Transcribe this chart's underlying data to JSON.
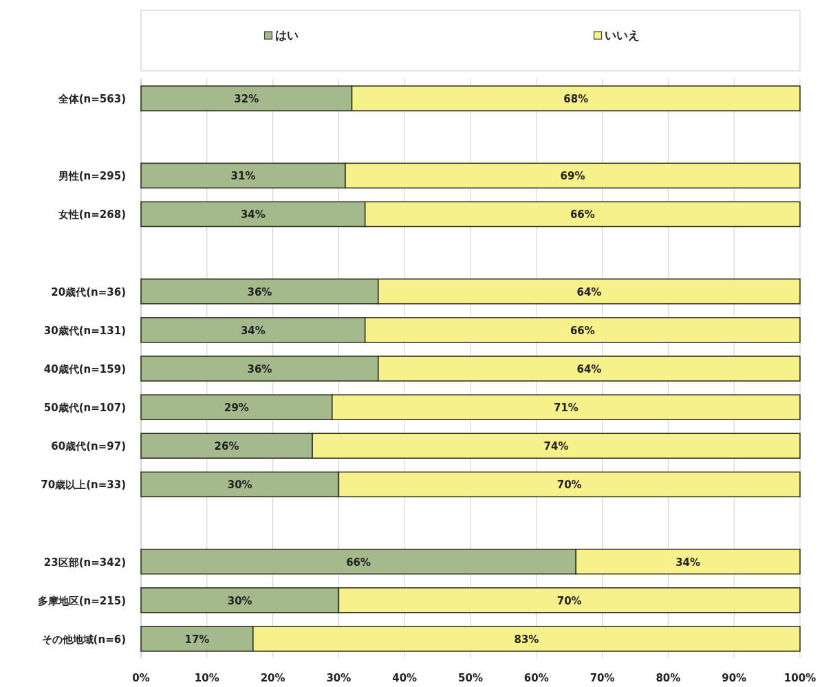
{
  "chart_data": {
    "type": "bar",
    "orientation": "horizontal",
    "stacked": true,
    "categories": [
      "全体(n=563)",
      null,
      "男性(n=295)",
      "女性(n=268)",
      null,
      "20歳代(n=36)",
      "30歳代(n=131)",
      "40歳代(n=159)",
      "50歳代(n=107)",
      "60歳代(n=97)",
      "70歳以上(n=33)",
      null,
      "23区部(n=342)",
      "多摩地区(n=215)",
      "その他地域(n=6)"
    ],
    "series": [
      {
        "name": "はい",
        "color": "#a4b98c",
        "values": [
          32,
          null,
          31,
          34,
          null,
          36,
          34,
          36,
          29,
          26,
          30,
          null,
          66,
          30,
          17
        ],
        "value_labels": [
          "32%",
          null,
          "31%",
          "34%",
          null,
          "36%",
          "34%",
          "36%",
          "29%",
          "26%",
          "30%",
          null,
          "66%",
          "30%",
          "17%"
        ]
      },
      {
        "name": "いいえ",
        "color": "#f7f18c",
        "values": [
          68,
          null,
          69,
          66,
          null,
          64,
          66,
          64,
          71,
          74,
          70,
          null,
          34,
          70,
          83
        ],
        "value_labels": [
          "68%",
          null,
          "69%",
          "66%",
          null,
          "64%",
          "66%",
          "64%",
          "71%",
          "74%",
          "70%",
          null,
          "34%",
          "70%",
          "83%"
        ]
      }
    ],
    "xlim": [
      0,
      100
    ],
    "xticks": [
      {
        "value": 0,
        "label": "0%"
      },
      {
        "value": 10,
        "label": "10%"
      },
      {
        "value": 20,
        "label": "20%"
      },
      {
        "value": 30,
        "label": "30%"
      },
      {
        "value": 40,
        "label": "40%"
      },
      {
        "value": 50,
        "label": "50%"
      },
      {
        "value": 60,
        "label": "60%"
      },
      {
        "value": 70,
        "label": "70%"
      },
      {
        "value": 80,
        "label": "80%"
      },
      {
        "value": 90,
        "label": "90%"
      },
      {
        "value": 100,
        "label": "100%"
      }
    ],
    "grid": "x",
    "legend": "top"
  }
}
